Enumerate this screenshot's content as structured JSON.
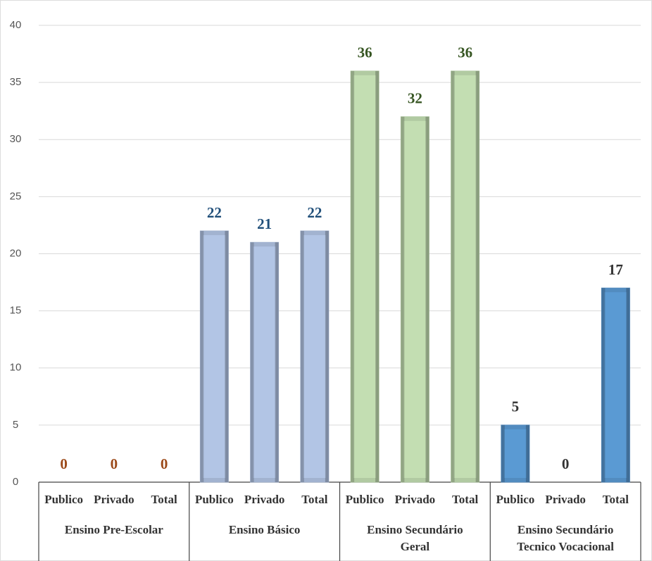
{
  "chart_data": {
    "type": "grouped_bar",
    "ylim": [
      0,
      40
    ],
    "yticks": [
      0,
      5,
      10,
      15,
      20,
      25,
      30,
      35,
      40
    ],
    "grid": true,
    "groups": [
      {
        "name": [
          "Ensino Pre-Escolar"
        ],
        "color": "#c55a11",
        "label_color": "#9c4a1a",
        "categories": [
          "Publico",
          "Privado",
          "Total"
        ],
        "values": [
          0,
          0,
          0
        ]
      },
      {
        "name": [
          "Ensino Básico"
        ],
        "color": "#b4c7e7",
        "label_color": "#1f4e79",
        "categories": [
          "Publico",
          "Privado",
          "Total"
        ],
        "values": [
          22,
          21,
          22
        ]
      },
      {
        "name": [
          "Ensino Secundário",
          "Geral"
        ],
        "color": "#c5e0b4",
        "label_color": "#375623",
        "categories": [
          "Publico",
          "Privado",
          "Total"
        ],
        "values": [
          36,
          32,
          36
        ]
      },
      {
        "name": [
          "Ensino Secundário",
          "Tecnico Vocacional"
        ],
        "color": "#5b9bd5",
        "label_color": "#333333",
        "categories": [
          "Publico",
          "Privado",
          "Total"
        ],
        "values": [
          5,
          0,
          17
        ]
      }
    ]
  }
}
